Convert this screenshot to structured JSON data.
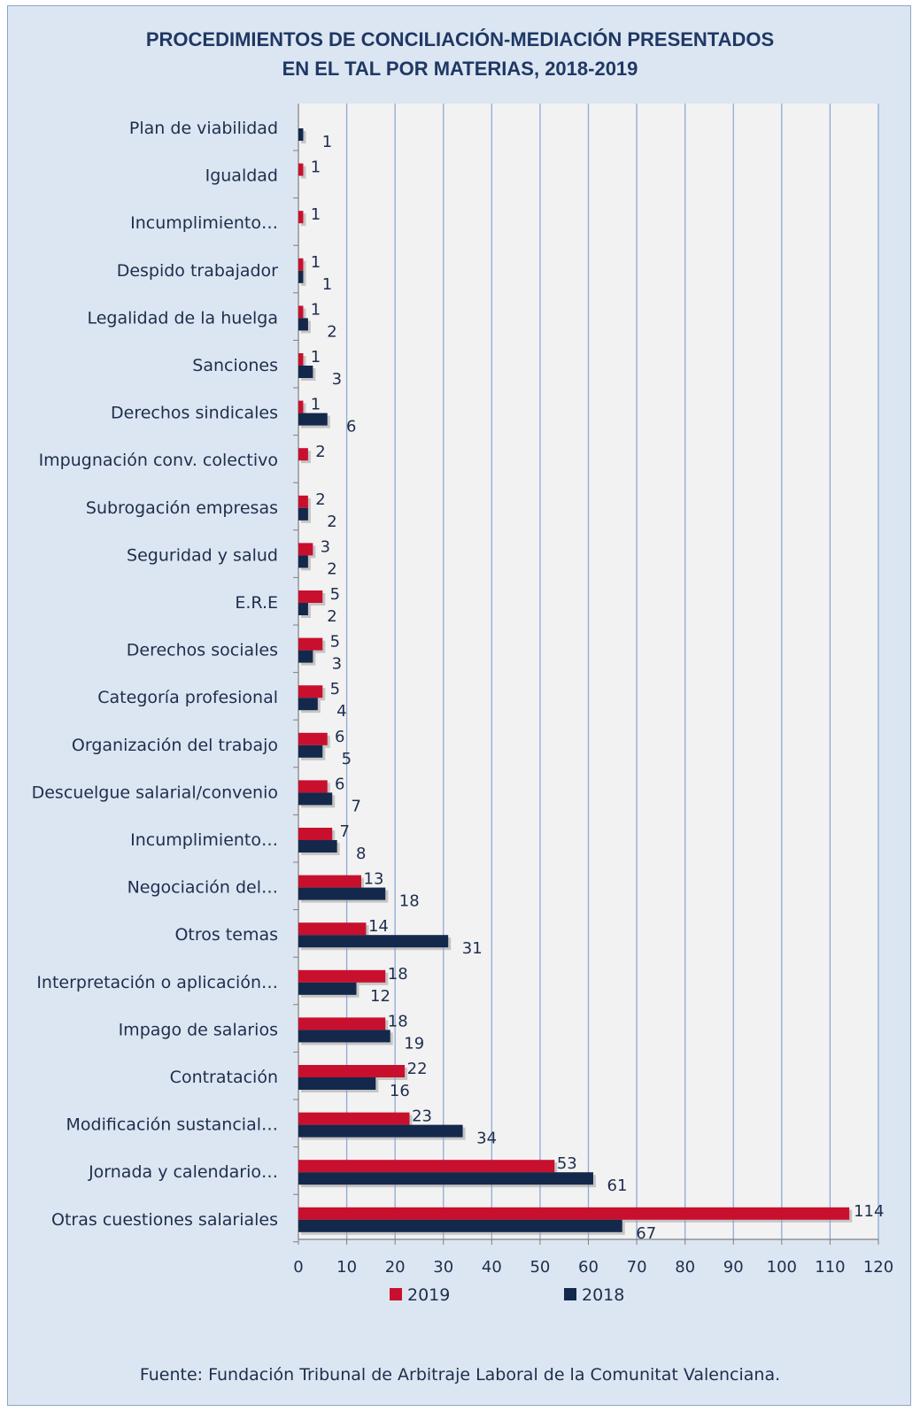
{
  "chart_data": {
    "type": "bar",
    "orientation": "horizontal",
    "title_lines": [
      "PROCEDIMIENTOS DE CONCILIACIÓN-MEDIACIÓN PRESENTADOS",
      "EN EL TAL POR MATERIAS, 2018-2019"
    ],
    "categories": [
      "Plan de viabilidad",
      "Igualdad",
      "Incumplimiento…",
      "Despido trabajador",
      "Legalidad de la huelga",
      "Sanciones",
      "Derechos sindicales",
      "Impugnación conv. colectivo",
      "Subrogación empresas",
      "Seguridad y salud",
      "E.R.E",
      "Derechos sociales",
      "Categoría profesional",
      "Organización del trabajo",
      "Descuelgue salarial/convenio",
      "Incumplimiento…",
      "Negociación del…",
      "Otros temas",
      "Interpretación o aplicación…",
      "Impago de salarios",
      "Contratación",
      "Modificación sustancial…",
      "Jornada y calendario…",
      "Otras cuestiones salariales"
    ],
    "series": [
      {
        "name": "2019",
        "color": "#c8102e",
        "values": [
          null,
          1,
          1,
          1,
          1,
          1,
          1,
          2,
          2,
          3,
          5,
          5,
          5,
          6,
          6,
          7,
          13,
          14,
          18,
          18,
          22,
          23,
          53,
          114
        ]
      },
      {
        "name": "2018",
        "color": "#14284b",
        "values": [
          1,
          null,
          null,
          1,
          2,
          3,
          6,
          null,
          2,
          2,
          2,
          3,
          4,
          5,
          7,
          8,
          18,
          31,
          12,
          19,
          16,
          34,
          61,
          67
        ]
      }
    ],
    "xlim": [
      0,
      120
    ],
    "xticks": [
      0,
      10,
      20,
      30,
      40,
      50,
      60,
      70,
      80,
      90,
      100,
      110,
      120
    ],
    "grid": true,
    "legend_position": "bottom"
  },
  "source_note": "Fuente: Fundación Tribunal de Arbitraje Laboral de la Comunitat  Valenciana."
}
